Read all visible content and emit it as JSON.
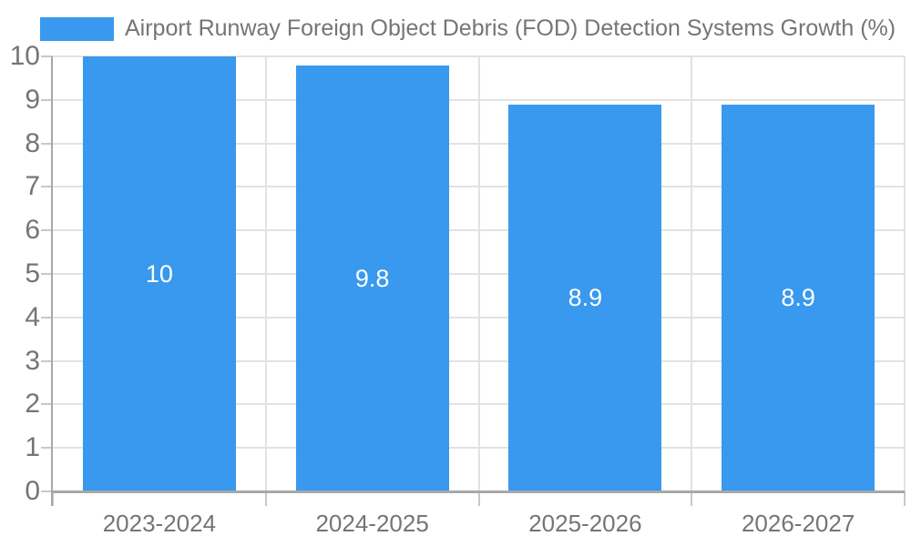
{
  "chart_data": {
    "type": "bar",
    "title": "Airport Runway Foreign Object Debris (FOD) Detection Systems Growth (%)",
    "categories": [
      "2023-2024",
      "2024-2025",
      "2025-2026",
      "2026-2027"
    ],
    "values": [
      10,
      9.8,
      8.9,
      8.9
    ],
    "bar_labels": [
      "10",
      "9.8",
      "8.9",
      "8.9"
    ],
    "xlabel": "",
    "ylabel": "",
    "ylim": [
      0,
      10
    ],
    "yticks": [
      0,
      1,
      2,
      3,
      4,
      5,
      6,
      7,
      8,
      9,
      10
    ],
    "grid": true,
    "legend_position": "top-left",
    "legend_entries": [
      "Airport Runway Foreign Object Debris (FOD) Detection Systems Growth (%)"
    ]
  },
  "colors": {
    "bar": "#3899ee",
    "title_text": "#757575",
    "tick_text": "#757575",
    "value_label_text": "#ffffff",
    "gridline": "#e2e2e2",
    "tick_mark": "#c8c8c8",
    "axis": "#a8a8a8",
    "background": "#ffffff"
  }
}
